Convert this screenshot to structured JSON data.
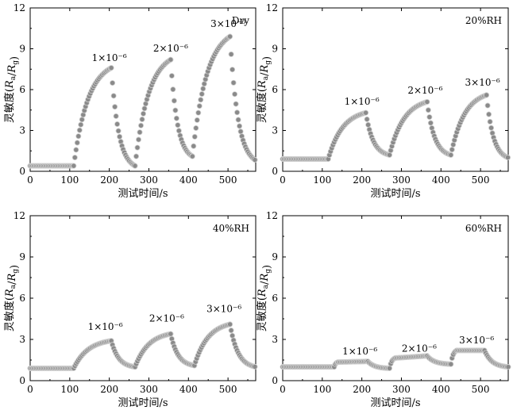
{
  "chart_data": [
    {
      "type": "scatter",
      "title": "",
      "condition": "Dry",
      "xlabel": "测试时间/s",
      "ylabel_prefix": "灵敏度(",
      "ylabel_ra": "R",
      "ylabel_a": "a",
      "ylabel_slash": "/",
      "ylabel_rg": "R",
      "ylabel_g": "g",
      "ylabel_suffix": ")",
      "xlim": [
        0,
        570
      ],
      "ylim": [
        0,
        12
      ],
      "xticks": [
        "0",
        "100",
        "200",
        "300",
        "400",
        "500"
      ],
      "yticks": [
        "0",
        "3",
        "6",
        "9",
        "12"
      ],
      "annotations": [
        {
          "text": "1×10⁻⁶",
          "x": 200,
          "y": 8.1
        },
        {
          "text": "2×10⁻⁶",
          "x": 355,
          "y": 8.8
        },
        {
          "text": "3×10⁻⁶",
          "x": 500,
          "y": 10.6
        }
      ],
      "segments": [
        {
          "x0": 0,
          "x1": 110,
          "y0": 0.4,
          "y1": 0.4,
          "shape": "flat"
        },
        {
          "x0": 110,
          "x1": 205,
          "y0": 0.4,
          "y1": 7.6,
          "shape": "rise"
        },
        {
          "x0": 205,
          "x1": 265,
          "y0": 7.6,
          "y1": 0.4,
          "shape": "decay"
        },
        {
          "x0": 265,
          "x1": 355,
          "y0": 0.4,
          "y1": 8.2,
          "shape": "rise"
        },
        {
          "x0": 355,
          "x1": 410,
          "y0": 8.2,
          "y1": 1.1,
          "shape": "decay"
        },
        {
          "x0": 410,
          "x1": 505,
          "y0": 1.1,
          "y1": 9.9,
          "shape": "rise"
        },
        {
          "x0": 505,
          "x1": 570,
          "y0": 9.9,
          "y1": 0.8,
          "shape": "decay"
        }
      ]
    },
    {
      "type": "scatter",
      "title": "",
      "condition": "20%RH",
      "xlabel": "测试时间/s",
      "ylabel_prefix": "灵敏度(",
      "ylabel_ra": "R",
      "ylabel_a": "a",
      "ylabel_slash": "/",
      "ylabel_rg": "R",
      "ylabel_g": "g",
      "ylabel_suffix": ")",
      "xlim": [
        0,
        570
      ],
      "ylim": [
        0,
        12
      ],
      "xticks": [
        "0",
        "100",
        "200",
        "300",
        "400",
        "500"
      ],
      "yticks": [
        "0",
        "3",
        "6",
        "9",
        "12"
      ],
      "annotations": [
        {
          "text": "1×10⁻⁶",
          "x": 200,
          "y": 4.9
        },
        {
          "text": "2×10⁻⁶",
          "x": 360,
          "y": 5.7
        },
        {
          "text": "3×10⁻⁶",
          "x": 505,
          "y": 6.3
        }
      ],
      "segments": [
        {
          "x0": 0,
          "x1": 115,
          "y0": 0.9,
          "y1": 0.9,
          "shape": "flat"
        },
        {
          "x0": 115,
          "x1": 210,
          "y0": 0.9,
          "y1": 4.3,
          "shape": "rise"
        },
        {
          "x0": 210,
          "x1": 270,
          "y0": 4.3,
          "y1": 1.2,
          "shape": "decay"
        },
        {
          "x0": 270,
          "x1": 365,
          "y0": 1.2,
          "y1": 5.1,
          "shape": "rise"
        },
        {
          "x0": 365,
          "x1": 425,
          "y0": 5.1,
          "y1": 1.2,
          "shape": "decay"
        },
        {
          "x0": 425,
          "x1": 515,
          "y0": 1.2,
          "y1": 5.6,
          "shape": "rise"
        },
        {
          "x0": 515,
          "x1": 570,
          "y0": 5.6,
          "y1": 1.0,
          "shape": "decay"
        }
      ]
    },
    {
      "type": "scatter",
      "title": "",
      "condition": "40%RH",
      "xlabel": "测试时间/s",
      "ylabel_prefix": "灵敏度(",
      "ylabel_ra": "R",
      "ylabel_a": "a",
      "ylabel_slash": "/",
      "ylabel_rg": "R",
      "ylabel_g": "g",
      "ylabel_suffix": ")",
      "xlim": [
        0,
        570
      ],
      "ylim": [
        0,
        12
      ],
      "xticks": [
        "0",
        "100",
        "200",
        "300",
        "400",
        "500"
      ],
      "yticks": [
        "0",
        "3",
        "6",
        "9",
        "12"
      ],
      "annotations": [
        {
          "text": "1×10⁻⁶",
          "x": 190,
          "y": 3.7
        },
        {
          "text": "2×10⁻⁶",
          "x": 345,
          "y": 4.3
        },
        {
          "text": "3×10⁻⁶",
          "x": 490,
          "y": 5.0
        }
      ],
      "segments": [
        {
          "x0": 0,
          "x1": 110,
          "y0": 0.9,
          "y1": 0.9,
          "shape": "flat"
        },
        {
          "x0": 110,
          "x1": 205,
          "y0": 0.9,
          "y1": 2.9,
          "shape": "rise"
        },
        {
          "x0": 205,
          "x1": 265,
          "y0": 2.9,
          "y1": 1.0,
          "shape": "decay"
        },
        {
          "x0": 265,
          "x1": 355,
          "y0": 1.0,
          "y1": 3.4,
          "shape": "rise"
        },
        {
          "x0": 355,
          "x1": 415,
          "y0": 3.4,
          "y1": 1.1,
          "shape": "decay"
        },
        {
          "x0": 415,
          "x1": 505,
          "y0": 1.1,
          "y1": 4.1,
          "shape": "rise"
        },
        {
          "x0": 505,
          "x1": 570,
          "y0": 4.1,
          "y1": 1.0,
          "shape": "decay"
        }
      ]
    },
    {
      "type": "scatter",
      "title": "",
      "condition": "60%RH",
      "xlabel": "测试时间/s",
      "ylabel_prefix": "灵敏度(",
      "ylabel_ra": "R",
      "ylabel_a": "a",
      "ylabel_slash": "/",
      "ylabel_rg": "R",
      "ylabel_g": "g",
      "ylabel_suffix": ")",
      "xlim": [
        0,
        570
      ],
      "ylim": [
        0,
        12
      ],
      "xticks": [
        "0",
        "100",
        "200",
        "300",
        "400",
        "500"
      ],
      "yticks": [
        "0",
        "3",
        "6",
        "9",
        "12"
      ],
      "annotations": [
        {
          "text": "1×10⁻⁶",
          "x": 195,
          "y": 1.9
        },
        {
          "text": "2×10⁻⁶",
          "x": 345,
          "y": 2.1
        },
        {
          "text": "3×10⁻⁶",
          "x": 490,
          "y": 2.7
        }
      ],
      "segments": [
        {
          "x0": 0,
          "x1": 130,
          "y0": 1.0,
          "y1": 1.0,
          "shape": "flat"
        },
        {
          "x0": 130,
          "x1": 140,
          "y0": 1.0,
          "y1": 1.35,
          "shape": "rise"
        },
        {
          "x0": 140,
          "x1": 215,
          "y0": 1.35,
          "y1": 1.4,
          "shape": "flat"
        },
        {
          "x0": 215,
          "x1": 270,
          "y0": 1.4,
          "y1": 0.9,
          "shape": "decay"
        },
        {
          "x0": 270,
          "x1": 285,
          "y0": 0.9,
          "y1": 1.65,
          "shape": "rise"
        },
        {
          "x0": 285,
          "x1": 365,
          "y0": 1.65,
          "y1": 1.8,
          "shape": "flat"
        },
        {
          "x0": 365,
          "x1": 425,
          "y0": 1.8,
          "y1": 1.2,
          "shape": "decay"
        },
        {
          "x0": 425,
          "x1": 440,
          "y0": 1.2,
          "y1": 2.2,
          "shape": "rise"
        },
        {
          "x0": 440,
          "x1": 510,
          "y0": 2.2,
          "y1": 2.2,
          "shape": "flat"
        },
        {
          "x0": 510,
          "x1": 570,
          "y0": 2.2,
          "y1": 1.0,
          "shape": "decay"
        }
      ]
    }
  ],
  "colors": {
    "marker_fill": "#8a8a8a",
    "marker_stroke": "#cfcfcf",
    "axis": "#000000"
  }
}
